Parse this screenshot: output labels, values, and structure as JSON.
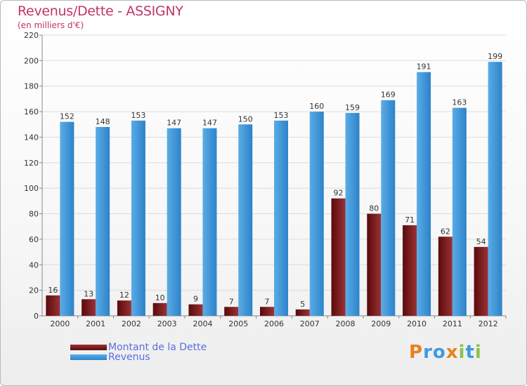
{
  "title": "Revenus/Dette - ASSIGNY",
  "subtitle": "(en milliers d'€)",
  "colors": {
    "title": "#c0346a",
    "dette_dark": "#5a0a0a",
    "dette_light": "#9a3236",
    "revenus_dark": "#2d83c9",
    "revenus_light": "#5aace6",
    "legend_text": "#5b6fe0"
  },
  "legend": [
    {
      "label": "Montant de la Dette",
      "series": "dette"
    },
    {
      "label": "Revenus",
      "series": "revenus"
    }
  ],
  "logo": {
    "letters": [
      "P",
      "r",
      "o",
      "x",
      "i",
      "t",
      "i"
    ],
    "colors": [
      "#e8821e",
      "#3b9be0",
      "#3b9be0",
      "#e8821e",
      "#8bc34a",
      "#3b9be0",
      "#8bc34a"
    ]
  },
  "chart_data": {
    "type": "bar",
    "categories": [
      "2000",
      "2001",
      "2002",
      "2003",
      "2004",
      "2005",
      "2006",
      "2007",
      "2008",
      "2009",
      "2010",
      "2011",
      "2012"
    ],
    "series": [
      {
        "name": "Montant de la Dette",
        "values": [
          16,
          13,
          12,
          10,
          9,
          7,
          7,
          5,
          92,
          80,
          71,
          62,
          54
        ]
      },
      {
        "name": "Revenus",
        "values": [
          152,
          148,
          153,
          147,
          147,
          150,
          153,
          160,
          159,
          169,
          191,
          163,
          199
        ]
      }
    ],
    "ylim": [
      0,
      220
    ],
    "yticks": [
      0,
      20,
      40,
      60,
      80,
      100,
      120,
      140,
      160,
      180,
      200,
      220
    ],
    "grid": true,
    "legend_position": "bottom-left"
  }
}
